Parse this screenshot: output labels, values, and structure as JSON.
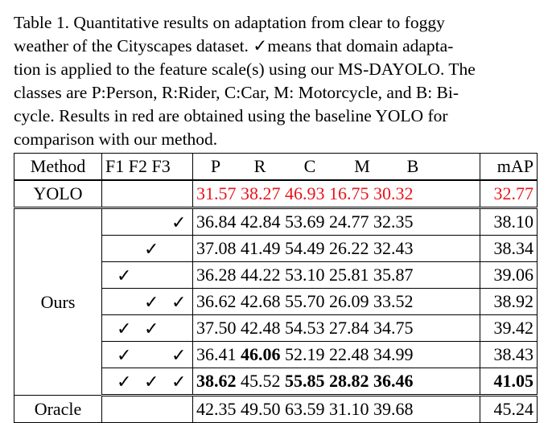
{
  "caption": {
    "lines": [
      "Table 1. Quantitative results on adaptation from clear to foggy",
      "weather of the Cityscapes dataset. ✓means that domain adapta-",
      "tion is applied to the feature scale(s) using our MS-DAYOLO. The",
      "classes are P:Person, R:Rider, C:Car, M: Motorcycle, and B: Bi-",
      "cycle. Results in red are obtained using the baseline YOLO for",
      "comparison with our method."
    ]
  },
  "table": {
    "headers": {
      "method": "Method",
      "flags": "F1 F2 F3",
      "p": "P",
      "r": "R",
      "c": "C",
      "m": "M",
      "b": "B",
      "map": "mAP"
    },
    "yolo": {
      "method": "YOLO",
      "values": [
        "31.57",
        "38.27",
        "46.93",
        "16.75",
        "30.32"
      ],
      "map": "32.77",
      "color": "#e8141b"
    },
    "ours_label": "Ours",
    "check_symbol": "✓",
    "ours_rows": [
      {
        "f1": "",
        "f2": "",
        "f3": "✓",
        "values": [
          "36.84",
          "42.84",
          "53.69",
          "24.77",
          "32.35"
        ],
        "map": "38.10"
      },
      {
        "f1": "",
        "f2": "✓",
        "f3": "",
        "values": [
          "37.08",
          "41.49",
          "54.49",
          "26.22",
          "32.43"
        ],
        "map": "38.34"
      },
      {
        "f1": "✓",
        "f2": "",
        "f3": "",
        "values": [
          "36.28",
          "44.22",
          "53.10",
          "25.81",
          "35.87"
        ],
        "map": "39.06"
      },
      {
        "f1": "",
        "f2": "✓",
        "f3": "✓",
        "values": [
          "36.62",
          "42.68",
          "55.70",
          "26.09",
          "33.52"
        ],
        "map": "38.92"
      },
      {
        "f1": "✓",
        "f2": "✓",
        "f3": "",
        "values": [
          "37.50",
          "42.48",
          "54.53",
          "27.84",
          "34.75"
        ],
        "map": "39.42"
      },
      {
        "f1": "✓",
        "f2": "",
        "f3": "✓",
        "values": [
          "36.41",
          "46.06",
          "52.19",
          "22.48",
          "34.99"
        ],
        "map": "38.43",
        "bold": [
          1
        ]
      },
      {
        "f1": "✓",
        "f2": "✓",
        "f3": "✓",
        "values": [
          "38.62",
          "45.52",
          "55.85",
          "28.82",
          "36.46"
        ],
        "map": "41.05",
        "bold": [
          0,
          2,
          3,
          4
        ],
        "map_bold": true
      }
    ],
    "oracle": {
      "method": "Oracle",
      "values": [
        "42.35",
        "49.50",
        "63.59",
        "31.10",
        "39.68"
      ],
      "map": "45.24"
    }
  }
}
